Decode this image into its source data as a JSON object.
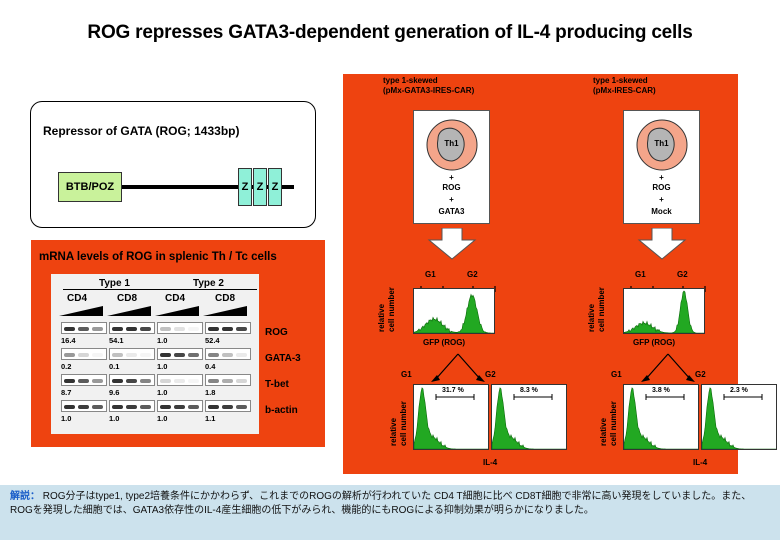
{
  "title": "ROG represses GATA3-dependent generation of IL-4 producing cells",
  "rog_box": {
    "title": "Repressor of GATA (ROG; 1433bp)",
    "btb_label": "BTB/POZ",
    "zinc_fingers": [
      "Z",
      "Z",
      "Z"
    ]
  },
  "mrna_panel": {
    "title": "mRNA levels of ROG in splenic Th / Tc cells",
    "groups": [
      "Type 1",
      "Type 2"
    ],
    "subgroups": [
      "CD4",
      "CD8",
      "CD4",
      "CD8"
    ],
    "rows": [
      {
        "label": "ROG",
        "values": [
          "16.4",
          "54.1",
          "1.0",
          "52.4"
        ]
      },
      {
        "label": "GATA-3",
        "values": [
          "0.2",
          "0.1",
          "1.0",
          "0.4"
        ]
      },
      {
        "label": "T-bet",
        "values": [
          "8.7",
          "9.6",
          "1.0",
          "1.8"
        ]
      },
      {
        "label": "b-actin",
        "values": [
          "1.0",
          "1.0",
          "1.0",
          "1.1"
        ]
      }
    ]
  },
  "right_panel": {
    "columns": [
      {
        "head1": "type 1-skewed",
        "head2": "(pMx-GATA3-IRES-CAR)",
        "cell_label": "Th1",
        "plus1": "+",
        "line1": "ROG",
        "plus2": "+",
        "line2": "GATA3",
        "gate1": "G1",
        "gate2": "G2",
        "ylabel1": "relative",
        "ylabel2": "cell number",
        "xlabel": "GFP (ROG)",
        "lower_g1": "G1",
        "lower_g2": "G2",
        "pct_g1": "31.7 %",
        "pct_g2": "8.3 %",
        "il4": "IL-4"
      },
      {
        "head1": "type 1-skewed",
        "head2": "(pMx-IRES-CAR)",
        "cell_label": "Th1",
        "plus1": "+",
        "line1": "ROG",
        "plus2": "+",
        "line2": "Mock",
        "gate1": "G1",
        "gate2": "G2",
        "ylabel1": "relative",
        "ylabel2": "cell number",
        "xlabel": "GFP (ROG)",
        "lower_g1": "G1",
        "lower_g2": "G2",
        "pct_g1": "3.8 %",
        "pct_g2": "2.3 %",
        "il4": "IL-4"
      }
    ]
  },
  "explanation": {
    "lead": "解説：",
    "text": "ROG分子はtype1, type2培養条件にかかわらず、これまでのROGの解析が行われていた CD4 T細胞に比べ CD8T細胞で非常に高い発現をしていました。また、ROGを発現した細胞では、GATA3依存性のIL-4産生細胞の低下がみられ、機能的にもROGによる抑制効果が明らかになりました。"
  },
  "colors": {
    "panel": "#ee4310",
    "btb": "#c9f29b",
    "zinc": "#8ff0d8",
    "histogram": "#22a822",
    "cell_outer": "#f4a58a",
    "cell_inner": "#b5b5b5",
    "explanation_bg": "#cce2ed"
  }
}
